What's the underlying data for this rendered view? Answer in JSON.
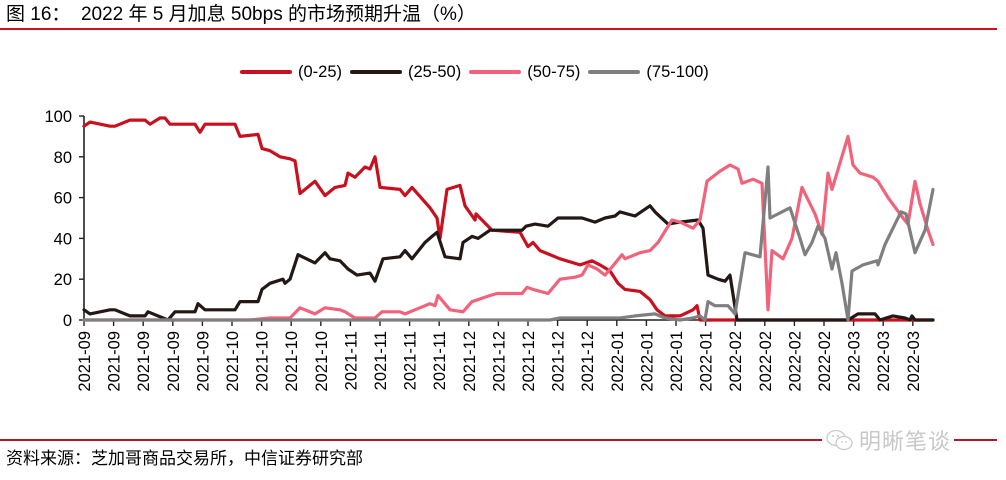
{
  "header": {
    "title": "图 16：  2022 年 5 月加息 50bps 的市场预期升温（%）"
  },
  "footer": {
    "source": "资料来源：芝加哥商品交易所，中信证券研究部",
    "watermark": "明晰笔谈",
    "watermark_icon": "wechat-icon"
  },
  "colors": {
    "title_rule": "#d0101b",
    "s0_25": "#c8101e",
    "s25_50": "#231815",
    "s50_75": "#f2627a",
    "s75_100": "#7f7f7f"
  },
  "legend": [
    {
      "label": "(0-25)",
      "color": "#c8101e"
    },
    {
      "label": "(25-50)",
      "color": "#231815"
    },
    {
      "label": "(50-75)",
      "color": "#f2627a"
    },
    {
      "label": "(75-100)",
      "color": "#7f7f7f"
    }
  ],
  "chart_data": {
    "type": "line",
    "title": "2022 年 5 月加息 50bps 的市场预期升温（%）",
    "xlabel": "",
    "ylabel": "%",
    "ylim": [
      0,
      100
    ],
    "yticks": [
      0,
      20,
      40,
      60,
      80,
      100
    ],
    "grid": false,
    "legend_position": "top",
    "x_tick_labels": [
      "2021-09",
      "2021-09",
      "2021-09",
      "2021-09",
      "2021-09",
      "2021-10",
      "2021-10",
      "2021-10",
      "2021-10",
      "2021-11",
      "2021-11",
      "2021-11",
      "2021-11",
      "2021-12",
      "2021-12",
      "2021-12",
      "2021-12",
      "2021-12",
      "2022-01",
      "2022-01",
      "2022-01",
      "2022-01",
      "2022-02",
      "2022-02",
      "2022-02",
      "2022-02",
      "2022-03",
      "2022-03",
      "2022-03"
    ],
    "x_note": "x values are horizontal positions in plot units (0 = first tick 2021-09, 29.6 units per tick, last point ≈ 849)",
    "series": [
      {
        "name": "(0-25)",
        "color": "#c8101e",
        "points": [
          [
            0,
            95
          ],
          [
            6,
            97
          ],
          [
            26,
            95
          ],
          [
            31,
            95
          ],
          [
            46,
            98
          ],
          [
            61,
            98
          ],
          [
            66,
            96
          ],
          [
            76,
            99
          ],
          [
            81,
            99
          ],
          [
            86,
            96
          ],
          [
            111,
            96
          ],
          [
            116,
            92
          ],
          [
            121,
            96
          ],
          [
            151,
            96
          ],
          [
            156,
            90
          ],
          [
            174,
            91
          ],
          [
            178,
            84
          ],
          [
            186,
            83
          ],
          [
            196,
            80
          ],
          [
            206,
            79
          ],
          [
            211,
            78
          ],
          [
            216,
            62
          ],
          [
            231,
            68
          ],
          [
            241,
            61
          ],
          [
            251,
            65
          ],
          [
            261,
            66
          ],
          [
            264,
            72
          ],
          [
            271,
            70
          ],
          [
            281,
            75
          ],
          [
            286,
            74
          ],
          [
            291,
            80
          ],
          [
            296,
            65
          ],
          [
            316,
            64
          ],
          [
            321,
            61
          ],
          [
            328,
            65
          ],
          [
            346,
            55
          ],
          [
            353,
            50
          ],
          [
            356,
            40
          ],
          [
            363,
            64
          ],
          [
            376,
            66
          ],
          [
            381,
            56
          ],
          [
            391,
            49
          ],
          [
            392,
            52
          ],
          [
            408,
            44
          ],
          [
            436,
            43
          ],
          [
            444,
            36
          ],
          [
            449,
            38
          ],
          [
            456,
            34
          ],
          [
            476,
            30
          ],
          [
            496,
            27
          ],
          [
            508,
            29
          ],
          [
            516,
            27
          ],
          [
            526,
            24
          ],
          [
            534,
            18
          ],
          [
            541,
            15
          ],
          [
            556,
            14
          ],
          [
            566,
            10
          ],
          [
            573,
            5
          ],
          [
            581,
            2
          ],
          [
            596,
            2
          ],
          [
            609,
            5
          ],
          [
            613,
            7
          ],
          [
            616,
            0
          ],
          [
            849,
            0
          ]
        ]
      },
      {
        "name": "(25-50)",
        "color": "#231815",
        "points": [
          [
            0,
            5
          ],
          [
            6,
            3
          ],
          [
            26,
            5
          ],
          [
            31,
            5
          ],
          [
            46,
            2
          ],
          [
            61,
            2
          ],
          [
            64,
            4
          ],
          [
            84,
            0
          ],
          [
            91,
            4
          ],
          [
            111,
            4
          ],
          [
            114,
            8
          ],
          [
            121,
            5
          ],
          [
            151,
            5
          ],
          [
            156,
            9
          ],
          [
            174,
            9
          ],
          [
            178,
            15
          ],
          [
            186,
            18
          ],
          [
            199,
            20
          ],
          [
            201,
            18
          ],
          [
            206,
            20
          ],
          [
            214,
            32
          ],
          [
            231,
            28
          ],
          [
            241,
            33
          ],
          [
            246,
            30
          ],
          [
            256,
            29
          ],
          [
            264,
            25
          ],
          [
            273,
            22
          ],
          [
            286,
            23
          ],
          [
            291,
            19
          ],
          [
            299,
            30
          ],
          [
            316,
            31
          ],
          [
            321,
            34
          ],
          [
            328,
            30
          ],
          [
            341,
            38
          ],
          [
            348,
            41
          ],
          [
            353,
            43
          ],
          [
            361,
            31
          ],
          [
            376,
            30
          ],
          [
            379,
            38
          ],
          [
            388,
            41
          ],
          [
            394,
            40
          ],
          [
            406,
            44
          ],
          [
            438,
            44
          ],
          [
            442,
            46
          ],
          [
            451,
            47
          ],
          [
            464,
            46
          ],
          [
            474,
            50
          ],
          [
            498,
            50
          ],
          [
            511,
            48
          ],
          [
            521,
            50
          ],
          [
            531,
            51
          ],
          [
            536,
            53
          ],
          [
            551,
            51
          ],
          [
            566,
            56
          ],
          [
            571,
            53
          ],
          [
            584,
            47
          ],
          [
            596,
            48
          ],
          [
            614,
            49
          ],
          [
            619,
            45
          ],
          [
            624,
            22
          ],
          [
            634,
            20
          ],
          [
            641,
            19
          ],
          [
            646,
            22
          ],
          [
            653,
            0
          ],
          [
            764,
            0
          ],
          [
            774,
            3
          ],
          [
            791,
            3
          ],
          [
            796,
            0
          ],
          [
            809,
            2
          ],
          [
            821,
            1
          ],
          [
            826,
            0
          ],
          [
            828,
            2
          ],
          [
            831,
            0
          ],
          [
            849,
            0
          ]
        ]
      },
      {
        "name": "(50-75)",
        "color": "#f2627a",
        "points": [
          [
            0,
            0
          ],
          [
            166,
            0
          ],
          [
            186,
            1
          ],
          [
            206,
            1
          ],
          [
            216,
            6
          ],
          [
            231,
            3
          ],
          [
            241,
            6
          ],
          [
            256,
            5
          ],
          [
            261,
            4
          ],
          [
            271,
            1
          ],
          [
            291,
            1
          ],
          [
            298,
            4
          ],
          [
            316,
            4
          ],
          [
            321,
            3
          ],
          [
            331,
            5
          ],
          [
            346,
            8
          ],
          [
            351,
            7
          ],
          [
            354,
            12
          ],
          [
            366,
            5
          ],
          [
            379,
            4
          ],
          [
            388,
            9
          ],
          [
            394,
            10
          ],
          [
            406,
            12
          ],
          [
            413,
            13
          ],
          [
            438,
            13
          ],
          [
            443,
            16
          ],
          [
            449,
            15
          ],
          [
            464,
            13
          ],
          [
            476,
            20
          ],
          [
            491,
            21
          ],
          [
            498,
            22
          ],
          [
            504,
            27
          ],
          [
            513,
            25
          ],
          [
            521,
            22
          ],
          [
            528,
            26
          ],
          [
            538,
            32
          ],
          [
            541,
            30
          ],
          [
            556,
            33
          ],
          [
            566,
            34
          ],
          [
            574,
            38
          ],
          [
            588,
            49
          ],
          [
            596,
            48
          ],
          [
            609,
            45
          ],
          [
            616,
            49
          ],
          [
            623,
            68
          ],
          [
            636,
            73
          ],
          [
            646,
            76
          ],
          [
            654,
            74
          ],
          [
            658,
            67
          ],
          [
            669,
            69
          ],
          [
            678,
            67
          ],
          [
            684,
            5
          ],
          [
            688,
            34
          ],
          [
            699,
            30
          ],
          [
            708,
            40
          ],
          [
            718,
            65
          ],
          [
            731,
            52
          ],
          [
            738,
            42
          ],
          [
            744,
            72
          ],
          [
            748,
            64
          ],
          [
            764,
            90
          ],
          [
            769,
            76
          ],
          [
            776,
            72
          ],
          [
            789,
            70
          ],
          [
            794,
            68
          ],
          [
            804,
            60
          ],
          [
            819,
            50
          ],
          [
            824,
            47
          ],
          [
            831,
            68
          ],
          [
            836,
            57
          ],
          [
            844,
            44
          ],
          [
            849,
            37
          ]
        ]
      },
      {
        "name": "(75-100)",
        "color": "#7f7f7f",
        "points": [
          [
            0,
            0
          ],
          [
            466,
            0
          ],
          [
            476,
            1
          ],
          [
            536,
            1
          ],
          [
            551,
            2
          ],
          [
            571,
            3
          ],
          [
            581,
            1
          ],
          [
            596,
            0
          ],
          [
            609,
            1
          ],
          [
            616,
            2
          ],
          [
            621,
            0
          ],
          [
            624,
            9
          ],
          [
            631,
            7
          ],
          [
            644,
            7
          ],
          [
            651,
            3
          ],
          [
            661,
            33
          ],
          [
            676,
            31
          ],
          [
            684,
            75
          ],
          [
            686,
            50
          ],
          [
            706,
            55
          ],
          [
            716,
            40
          ],
          [
            721,
            32
          ],
          [
            728,
            38
          ],
          [
            734,
            46
          ],
          [
            741,
            40
          ],
          [
            748,
            25
          ],
          [
            752,
            33
          ],
          [
            758,
            18
          ],
          [
            764,
            0
          ],
          [
            768,
            24
          ],
          [
            779,
            27
          ],
          [
            793,
            29
          ],
          [
            794,
            27
          ],
          [
            801,
            37
          ],
          [
            811,
            47
          ],
          [
            817,
            53
          ],
          [
            822,
            52
          ],
          [
            831,
            33
          ],
          [
            841,
            44
          ],
          [
            849,
            64
          ]
        ]
      }
    ]
  }
}
